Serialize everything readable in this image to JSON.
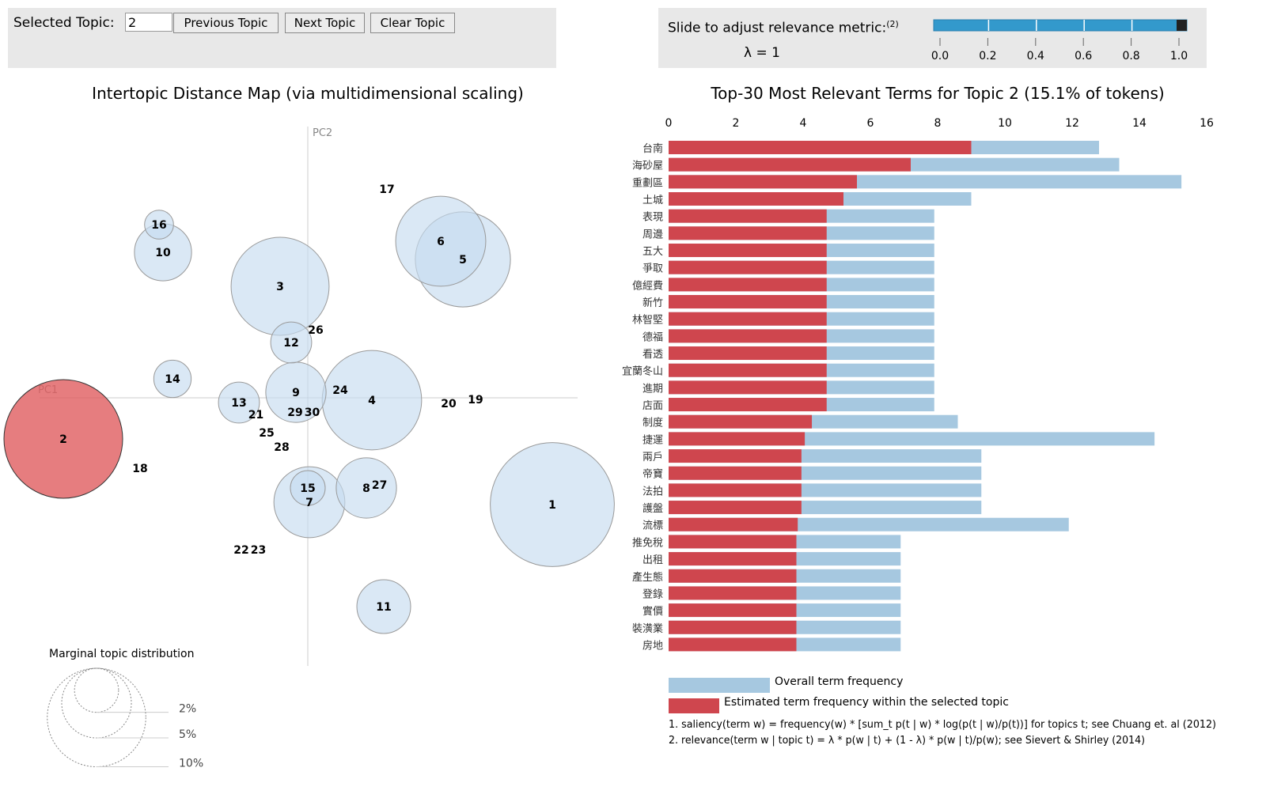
{
  "controls": {
    "selected_topic_label": "Selected Topic:",
    "selected_topic_value": "2",
    "previous_label": "Previous Topic",
    "next_label": "Next Topic",
    "clear_label": "Clear Topic",
    "slider_label": "Slide to adjust relevance metric:",
    "slider_footnote": "(2)",
    "lambda_text": "λ = 1",
    "lambda_value": 1,
    "slider_ticks": [
      "0.0",
      "0.2",
      "0.4",
      "0.6",
      "0.8",
      "1.0"
    ]
  },
  "colors": {
    "topic_fill": "#c6dbef",
    "selected_fill": "#e05c5f",
    "overall_bar": "#a6c8e0",
    "topic_bar": "#cf464e",
    "slider": "#3399cc"
  },
  "chart_data": [
    {
      "type": "scatter",
      "title": "Intertopic Distance Map (via multidimensional scaling)",
      "xlabel": "PC1",
      "ylabel": "PC2",
      "selected_topic": 2,
      "size_legend": {
        "title": "Marginal topic distribution",
        "labels": [
          "2%",
          "5%",
          "10%"
        ],
        "values": [
          2,
          5,
          10
        ]
      },
      "topics": [
        {
          "id": "1",
          "pc1": 0.309,
          "pc2": -0.135,
          "size": 16.5
        },
        {
          "id": "2",
          "pc1": -0.309,
          "pc2": -0.052,
          "size": 15.1
        },
        {
          "id": "3",
          "pc1": -0.035,
          "pc2": 0.141,
          "size": 10.3
        },
        {
          "id": "4",
          "pc1": 0.081,
          "pc2": -0.003,
          "size": 10.6
        },
        {
          "id": "5",
          "pc1": 0.196,
          "pc2": 0.175,
          "size": 9.7
        },
        {
          "id": "6",
          "pc1": 0.168,
          "pc2": 0.198,
          "size": 8.7
        },
        {
          "id": "7",
          "pc1": 0.002,
          "pc2": -0.132,
          "size": 5.4
        },
        {
          "id": "8",
          "pc1": 0.074,
          "pc2": -0.114,
          "size": 3.9
        },
        {
          "id": "9",
          "pc1": -0.015,
          "pc2": 0.007,
          "size": 3.9
        },
        {
          "id": "10",
          "pc1": -0.183,
          "pc2": 0.184,
          "size": 3.5
        },
        {
          "id": "11",
          "pc1": 0.096,
          "pc2": -0.264,
          "size": 3.1
        },
        {
          "id": "12",
          "pc1": -0.021,
          "pc2": 0.07,
          "size": 1.8
        },
        {
          "id": "13",
          "pc1": -0.087,
          "pc2": -0.006,
          "size": 1.8
        },
        {
          "id": "14",
          "pc1": -0.171,
          "pc2": 0.024,
          "size": 1.5
        },
        {
          "id": "15",
          "pc1": 0.0,
          "pc2": -0.114,
          "size": 1.3
        },
        {
          "id": "16",
          "pc1": -0.188,
          "pc2": 0.219,
          "size": 0.9
        },
        {
          "id": "17",
          "pc1": 0.1,
          "pc2": 0.264,
          "size": 0
        },
        {
          "id": "18",
          "pc1": -0.212,
          "pc2": -0.089,
          "size": 0
        },
        {
          "id": "19",
          "pc1": 0.212,
          "pc2": -0.002,
          "size": 0
        },
        {
          "id": "20",
          "pc1": 0.178,
          "pc2": -0.007,
          "size": 0
        },
        {
          "id": "21",
          "pc1": -0.085,
          "pc2": -0.021,
          "size": 0
        },
        {
          "id": "22",
          "pc1": -0.084,
          "pc2": -0.192,
          "size": 0
        },
        {
          "id": "23",
          "pc1": -0.084,
          "pc2": -0.192,
          "size": 0
        },
        {
          "id": "24",
          "pc1": 0.041,
          "pc2": 0.01,
          "size": 0
        },
        {
          "id": "25",
          "pc1": -0.052,
          "pc2": -0.044,
          "size": 0
        },
        {
          "id": "26",
          "pc1": 0.01,
          "pc2": 0.086,
          "size": 0
        },
        {
          "id": "27",
          "pc1": 0.06,
          "pc2": -0.11,
          "size": 0
        },
        {
          "id": "28",
          "pc1": -0.033,
          "pc2": -0.062,
          "size": 0
        },
        {
          "id": "29",
          "pc1": -0.016,
          "pc2": -0.018,
          "size": 0
        },
        {
          "id": "30",
          "pc1": -0.016,
          "pc2": -0.018,
          "size": 0
        }
      ]
    },
    {
      "type": "bar",
      "title": "Top-30 Most Relevant Terms for Topic 2 (15.1% of tokens)",
      "xlim": [
        0,
        16
      ],
      "ticks": [
        "0",
        "2",
        "4",
        "6",
        "8",
        "10",
        "12",
        "14",
        "16"
      ],
      "legend": [
        "Overall term frequency",
        "Estimated term frequency within the selected topic"
      ],
      "categories": [
        "台南",
        "海砂屋",
        "重劃區",
        "土城",
        "表現",
        "周邊",
        "五大",
        "爭取",
        "億經費",
        "新竹",
        "林智堅",
        "德福",
        "看透",
        "宜蘭冬山",
        "進期",
        "店面",
        "制度",
        "捷運",
        "兩戶",
        "帝寶",
        "法拍",
        "護盤",
        "流標",
        "推免稅",
        "出租",
        "產生態",
        "登錄",
        "實價",
        "裝潢業",
        "房地"
      ],
      "series": [
        {
          "name": "Overall term frequency",
          "values": [
            12.8,
            13.4,
            15.25,
            9.0,
            7.9,
            7.9,
            7.9,
            7.9,
            7.9,
            7.9,
            7.9,
            7.9,
            7.9,
            7.9,
            7.9,
            7.9,
            8.6,
            14.45,
            9.3,
            9.3,
            9.3,
            9.3,
            11.9,
            6.9,
            6.9,
            6.9,
            6.9,
            6.9,
            6.9,
            6.9
          ]
        },
        {
          "name": "Estimated term frequency within the selected topic",
          "values": [
            9.0,
            7.2,
            5.6,
            5.2,
            4.7,
            4.7,
            4.7,
            4.7,
            4.7,
            4.7,
            4.7,
            4.7,
            4.7,
            4.7,
            4.7,
            4.7,
            4.26,
            4.05,
            3.95,
            3.95,
            3.95,
            3.95,
            3.84,
            3.8,
            3.8,
            3.8,
            3.8,
            3.8,
            3.8,
            3.8
          ]
        }
      ]
    }
  ],
  "footnotes": [
    "1. saliency(term w) = frequency(w) * [sum_t p(t | w) * log(p(t | w)/p(t))] for topics t; see Chuang et. al (2012)",
    "2. relevance(term w | topic t) = λ * p(w | t) + (1 - λ) * p(w | t)/p(w); see Sievert & Shirley (2014)"
  ]
}
